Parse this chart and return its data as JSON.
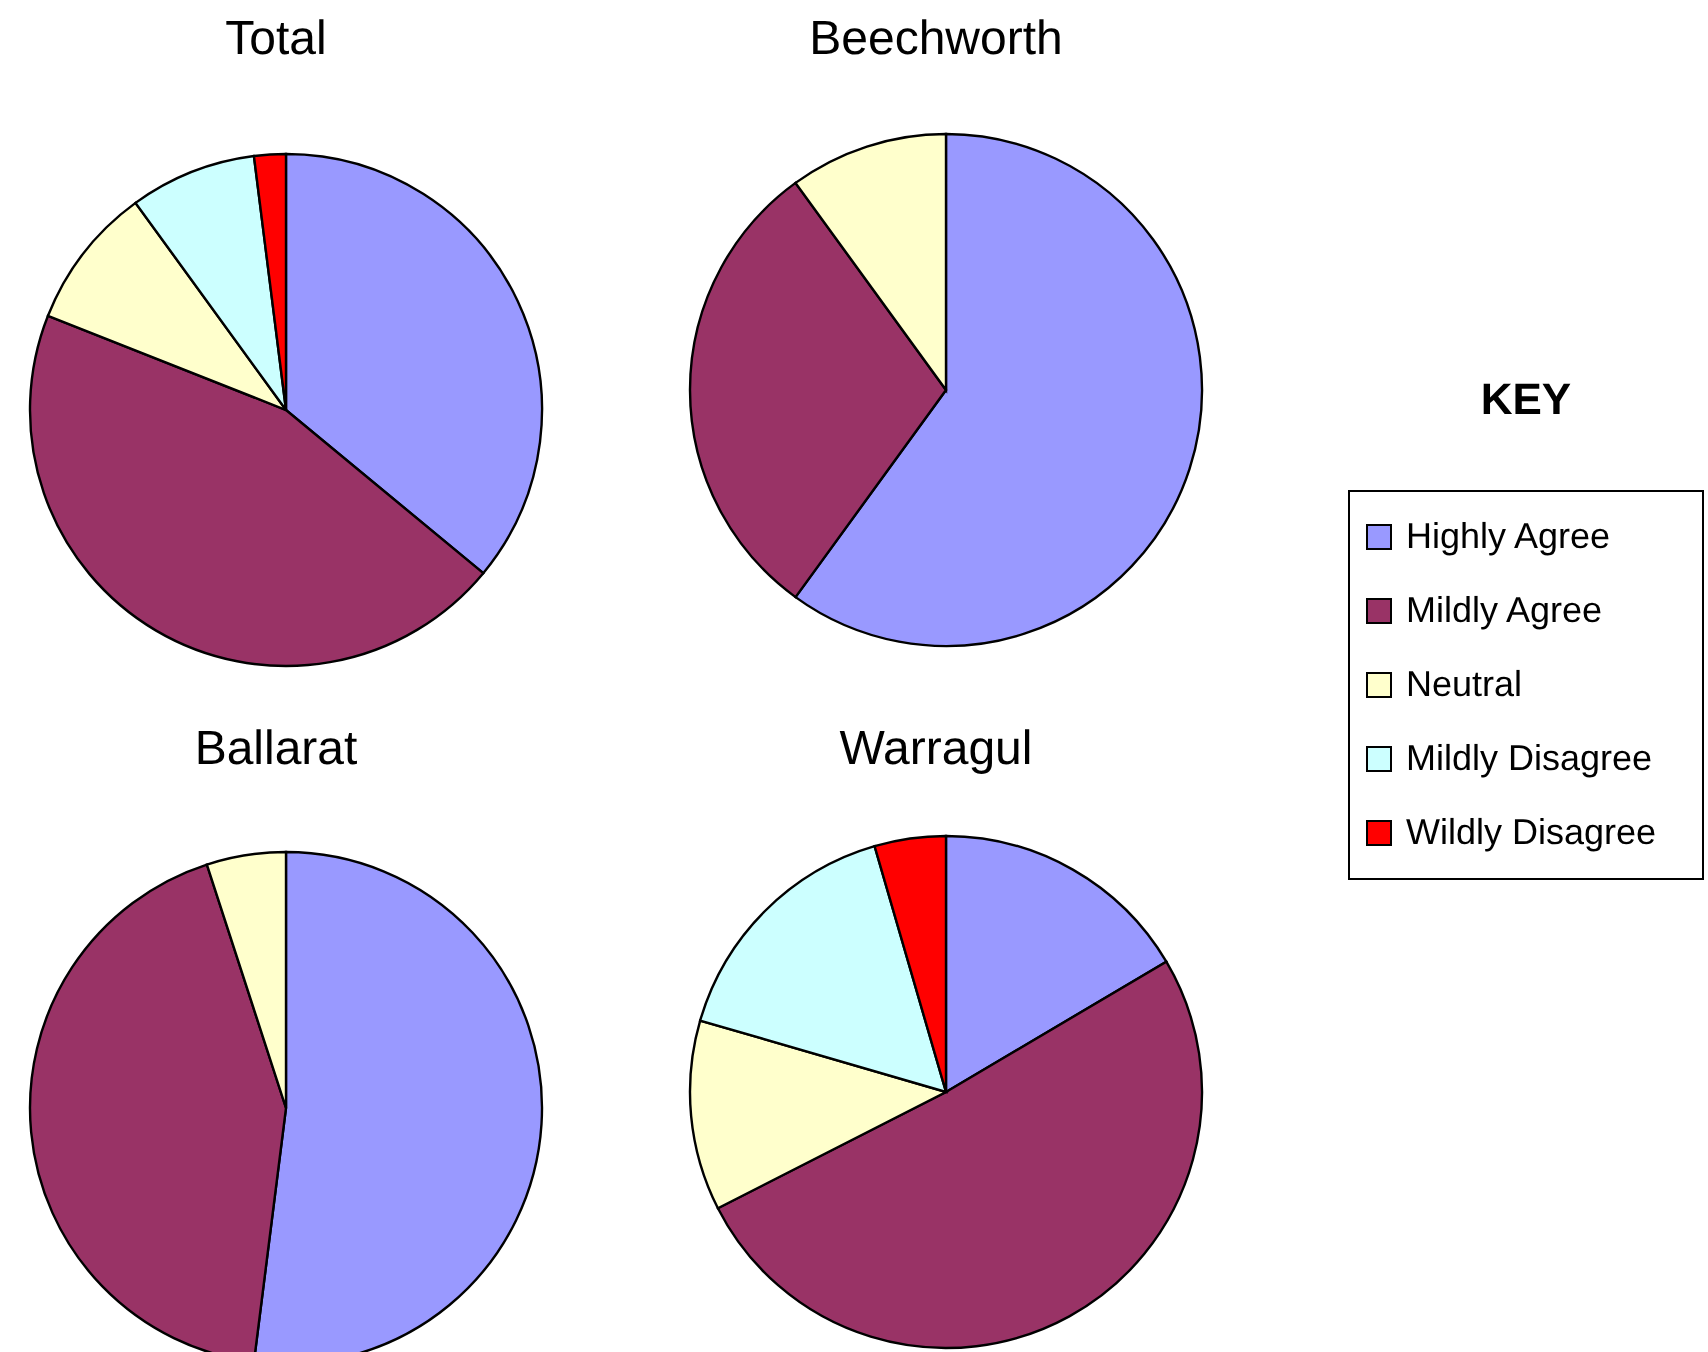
{
  "chart_data": [
    {
      "type": "pie",
      "title": "Total",
      "categories": [
        "Highly Agree",
        "Mildly Agree",
        "Neutral",
        "Mildly Disagree",
        "Wildly Disagree"
      ],
      "values": [
        36,
        45,
        9,
        8,
        2
      ],
      "colors": [
        "#9999ff",
        "#993366",
        "#ffffcc",
        "#ccffff",
        "#ff0000"
      ],
      "legend": "right",
      "legend_title": "KEY"
    },
    {
      "type": "pie",
      "title": "Beechworth",
      "categories": [
        null,
        null,
        null
      ],
      "values": [
        60,
        30,
        10
      ],
      "colors": [
        "#9999ff",
        "#993366",
        "#ffffcc"
      ]
    },
    {
      "type": "pie",
      "title": "Ballarat",
      "categories": [
        null,
        null,
        null
      ],
      "values": [
        52,
        43,
        5
      ],
      "colors": [
        "#9999ff",
        "#993366",
        "#ffffcc"
      ]
    },
    {
      "type": "pie",
      "title": "Warragul",
      "categories": [
        null,
        null,
        null,
        null,
        null
      ],
      "values": [
        16.5,
        51,
        12,
        16,
        4.5
      ],
      "colors": [
        "#9999ff",
        "#993366",
        "#ffffcc",
        "#ccffff",
        "#ff0000"
      ]
    }
  ]
}
